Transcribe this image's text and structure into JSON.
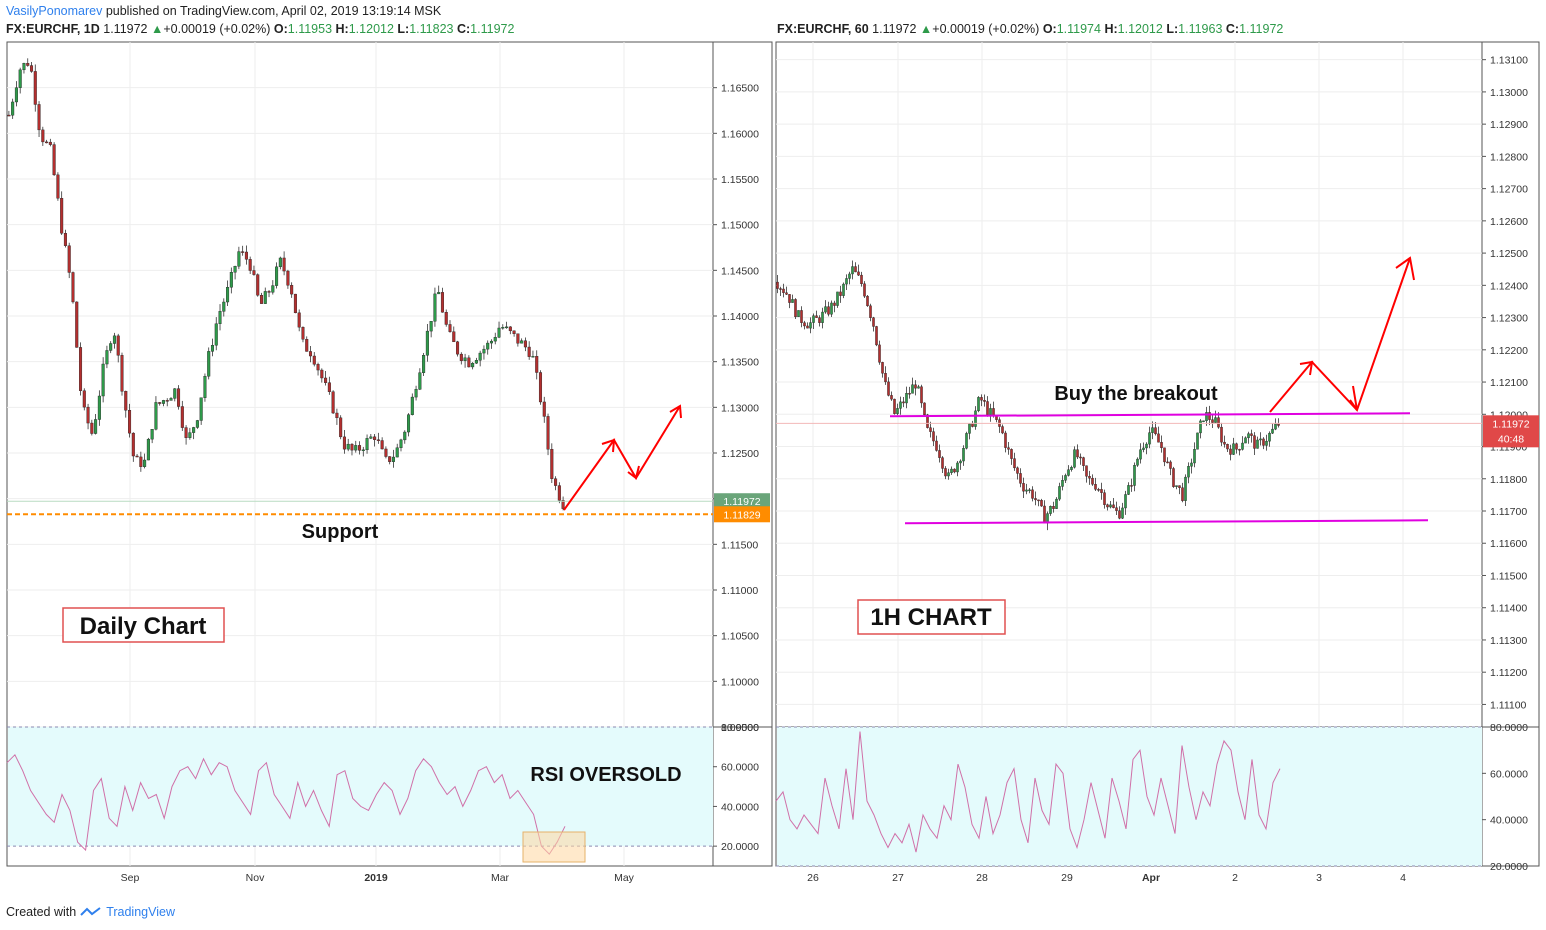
{
  "header": {
    "author": "VasilyPonomarev",
    "published": " published on TradingView.com, April 02, 2019 13:19:14 MSK"
  },
  "left_symbol": {
    "name": "FX:EURCHF, 1D",
    "last": "1.11972",
    "change": "+0.00019 (+0.02%)",
    "o_label": "O:",
    "o": "1.11953",
    "h_label": "H:",
    "h": "1.12012",
    "l_label": "L:",
    "l": "1.11823",
    "c_label": "C:",
    "c": "1.11972"
  },
  "right_symbol": {
    "name": "FX:EURCHF, 60",
    "last": "1.11972",
    "change": "+0.00019 (+0.02%)",
    "o_label": "O:",
    "o": "1.11974",
    "h_label": "H:",
    "h": "1.12012",
    "l_label": "L:",
    "l": "1.11963",
    "c_label": "C:",
    "c": "1.11972"
  },
  "footer": {
    "created_with": "Created with",
    "brand": "TradingView"
  },
  "colors": {
    "up": "#2e9a4a",
    "down": "#b32f2f",
    "wick": "#333333",
    "support": "#ff8c00",
    "magenta": "#e000e0",
    "arrow": "#ff0000",
    "rsi_bg": "#e4fbfc",
    "rsi_line": "#d070a8",
    "price_tag": "#6aa57a"
  },
  "chart_data": [
    {
      "type": "candlestick",
      "title": "",
      "timeframe": "1D",
      "ylim": [
        1.095,
        1.17
      ],
      "y_ticks": [
        "1.16500",
        "1.16000",
        "1.15500",
        "1.15000",
        "1.14500",
        "1.14000",
        "1.13500",
        "1.13000",
        "1.12500",
        "1.12000",
        "1.11500",
        "1.11000",
        "1.10500",
        "1.10000",
        "1.09500"
      ],
      "x_ticks": [
        "Sep",
        "Nov",
        "2019",
        "Mar",
        "May"
      ],
      "close_path": [
        1.162,
        1.167,
        1.168,
        1.16,
        1.158,
        1.15,
        1.143,
        1.13,
        1.127,
        1.134,
        1.139,
        1.131,
        1.124,
        1.124,
        1.13,
        1.131,
        1.132,
        1.126,
        1.129,
        1.135,
        1.14,
        1.143,
        1.147,
        1.146,
        1.141,
        1.143,
        1.146,
        1.143,
        1.137,
        1.136,
        1.133,
        1.13,
        1.126,
        1.125,
        1.126,
        1.127,
        1.124,
        1.125,
        1.128,
        1.133,
        1.138,
        1.143,
        1.138,
        1.136,
        1.135,
        1.136,
        1.137,
        1.139,
        1.138,
        1.137,
        1.136,
        1.13,
        1.122,
        1.1195
      ],
      "annotations": {
        "support_level": 1.11829,
        "current_price": 1.11972,
        "last_price_label": "1.11972",
        "support_price_label": "1.11829",
        "support_text": "Support",
        "box_label": "Daily Chart",
        "rsi_label": "RSI OVERSOLD"
      },
      "rsi": {
        "ylim": [
          10,
          80
        ],
        "ticks": [
          "80.0000",
          "60.0000",
          "40.0000",
          "20.0000"
        ],
        "band": [
          20,
          80
        ],
        "values": [
          62,
          66,
          58,
          48,
          42,
          36,
          32,
          46,
          38,
          22,
          18,
          48,
          54,
          34,
          30,
          50,
          38,
          52,
          44,
          46,
          34,
          50,
          58,
          60,
          54,
          64,
          56,
          62,
          60,
          48,
          42,
          36,
          58,
          62,
          46,
          40,
          34,
          52,
          40,
          48,
          38,
          30,
          56,
          58,
          44,
          40,
          38,
          46,
          52,
          48,
          36,
          44,
          58,
          64,
          60,
          52,
          46,
          50,
          40,
          48,
          58,
          60,
          52,
          56,
          44,
          48,
          42,
          36,
          20,
          16,
          22,
          30
        ]
      }
    },
    {
      "type": "candlestick",
      "title": "",
      "timeframe": "60",
      "ylim": [
        1.1103,
        1.1313
      ],
      "y_ticks": [
        "1.13100",
        "1.13000",
        "1.12900",
        "1.12800",
        "1.12700",
        "1.12600",
        "1.12500",
        "1.12400",
        "1.12300",
        "1.12200",
        "1.12100",
        "1.12000",
        "1.11900",
        "1.11800",
        "1.11700",
        "1.11600",
        "1.11500",
        "1.11400",
        "1.11300",
        "1.11200",
        "1.11100"
      ],
      "x_ticks": [
        "26",
        "27",
        "28",
        "29",
        "Apr",
        "2",
        "3",
        "4"
      ],
      "close_path": [
        1.1241,
        1.1237,
        1.123,
        1.1228,
        1.123,
        1.1233,
        1.1238,
        1.1245,
        1.124,
        1.1228,
        1.121,
        1.12,
        1.1205,
        1.121,
        1.1195,
        1.119,
        1.118,
        1.1186,
        1.1195,
        1.1205,
        1.12,
        1.1195,
        1.1185,
        1.1178,
        1.1175,
        1.1168,
        1.1172,
        1.1182,
        1.1188,
        1.118,
        1.1178,
        1.1172,
        1.1169,
        1.1177,
        1.1189,
        1.1195,
        1.119,
        1.118,
        1.1175,
        1.1188,
        1.12,
        1.1198,
        1.119,
        1.1189,
        1.1194,
        1.119,
        1.1193,
        1.1197
      ],
      "annotations": {
        "resistance_level": 1.12,
        "support_level": 1.11665,
        "current_price": 1.11972,
        "last_price_label": "1.11972",
        "countdown_label": "40:48",
        "breakout_text": "Buy the breakout",
        "box_label": "1H CHART"
      },
      "rsi": {
        "ylim": [
          20,
          80
        ],
        "ticks": [
          "80.0000",
          "60.0000",
          "40.0000",
          "20.0000"
        ],
        "band": [
          20,
          80
        ],
        "values": [
          48,
          52,
          40,
          36,
          42,
          38,
          34,
          58,
          46,
          36,
          62,
          40,
          78,
          48,
          42,
          34,
          28,
          34,
          30,
          38,
          26,
          42,
          36,
          32,
          46,
          40,
          64,
          54,
          38,
          32,
          50,
          34,
          42,
          56,
          62,
          40,
          30,
          58,
          44,
          38,
          64,
          60,
          36,
          28,
          40,
          56,
          44,
          32,
          58,
          48,
          36,
          66,
          70,
          50,
          42,
          58,
          46,
          34,
          72,
          54,
          40,
          52,
          46,
          64,
          74,
          70,
          52,
          40,
          66,
          42,
          36,
          56,
          62
        ]
      }
    }
  ]
}
